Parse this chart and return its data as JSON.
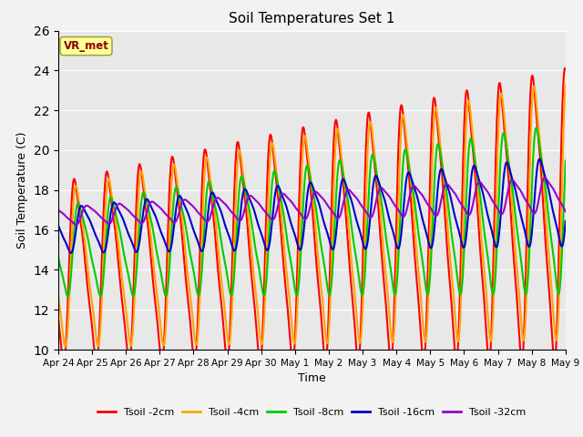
{
  "title": "Soil Temperatures Set 1",
  "xlabel": "Time",
  "ylabel": "Soil Temperature (C)",
  "ylim": [
    10,
    26
  ],
  "yticks": [
    10,
    12,
    14,
    16,
    18,
    20,
    22,
    24,
    26
  ],
  "xlabels": [
    "Apr 24",
    "Apr 25",
    "Apr 26",
    "Apr 27",
    "Apr 28",
    "Apr 29",
    "Apr 30",
    "May 1",
    "May 2",
    "May 3",
    "May 4",
    "May 5",
    "May 6",
    "May 7",
    "May 8",
    "May 9"
  ],
  "annotation_text": "VR_met",
  "annotation_color": "#8B0000",
  "annotation_bg": "#FFFF99",
  "bg_color": "#E8E8E8",
  "colors": {
    "Tsoil -2cm": "#FF0000",
    "Tsoil -4cm": "#FFA500",
    "Tsoil -8cm": "#00CC00",
    "Tsoil -16cm": "#0000CC",
    "Tsoil -32cm": "#9900CC"
  },
  "linewidth": 1.5
}
